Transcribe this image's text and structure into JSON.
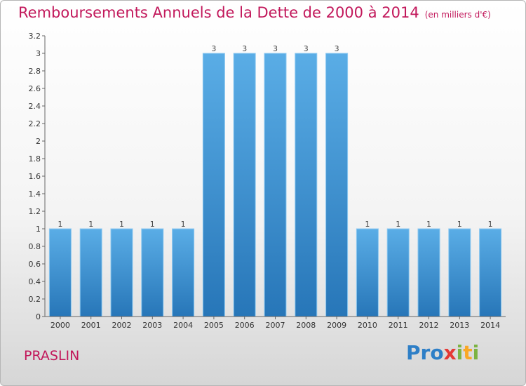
{
  "title": {
    "main": "Remboursements Annuels de la Dette de 2000 à 2014",
    "unit": "(en milliers d'€)"
  },
  "place_name": "PRASLIN",
  "brand": {
    "letters": [
      {
        "char": "P",
        "color": "#2e7fc7"
      },
      {
        "char": "r",
        "color": "#2e7fc7"
      },
      {
        "char": "o",
        "color": "#2e7fc7"
      },
      {
        "char": "x",
        "color": "#e53935"
      },
      {
        "char": "i",
        "color": "#7cb342"
      },
      {
        "char": "t",
        "color": "#f9a825"
      },
      {
        "char": "i",
        "color": "#7cb342"
      }
    ]
  },
  "colors": {
    "bar_top": "#5aade6",
    "bar_bottom": "#2776b8",
    "bar_edge": "#8cc8f0",
    "accent": "#c2185b"
  },
  "chart_data": {
    "type": "bar",
    "categories": [
      "2000",
      "2001",
      "2002",
      "2003",
      "2004",
      "2005",
      "2006",
      "2007",
      "2008",
      "2009",
      "2010",
      "2011",
      "2012",
      "2013",
      "2014"
    ],
    "values": [
      1,
      1,
      1,
      1,
      1,
      3,
      3,
      3,
      3,
      3,
      1,
      1,
      1,
      1,
      1
    ],
    "data_labels": [
      "1",
      "1",
      "1",
      "1",
      "1",
      "3",
      "3",
      "3",
      "3",
      "3",
      "1",
      "1",
      "1",
      "1",
      "1"
    ],
    "yticks": [
      0,
      0.2,
      0.4,
      0.6,
      0.8,
      1,
      1.2,
      1.4,
      1.6,
      1.8,
      2,
      2.2,
      2.4,
      2.6,
      2.8,
      3,
      3.2
    ],
    "ytick_labels": [
      "0",
      "0.2",
      "0.4",
      "0.6",
      "0.8",
      "1",
      "1.2",
      "1.4",
      "1.6",
      "1.8",
      "2",
      "2.2",
      "2.4",
      "2.6",
      "2.8",
      "3",
      "3.2"
    ],
    "ylim": [
      0,
      3.2
    ],
    "grid": false,
    "legend": "none"
  }
}
